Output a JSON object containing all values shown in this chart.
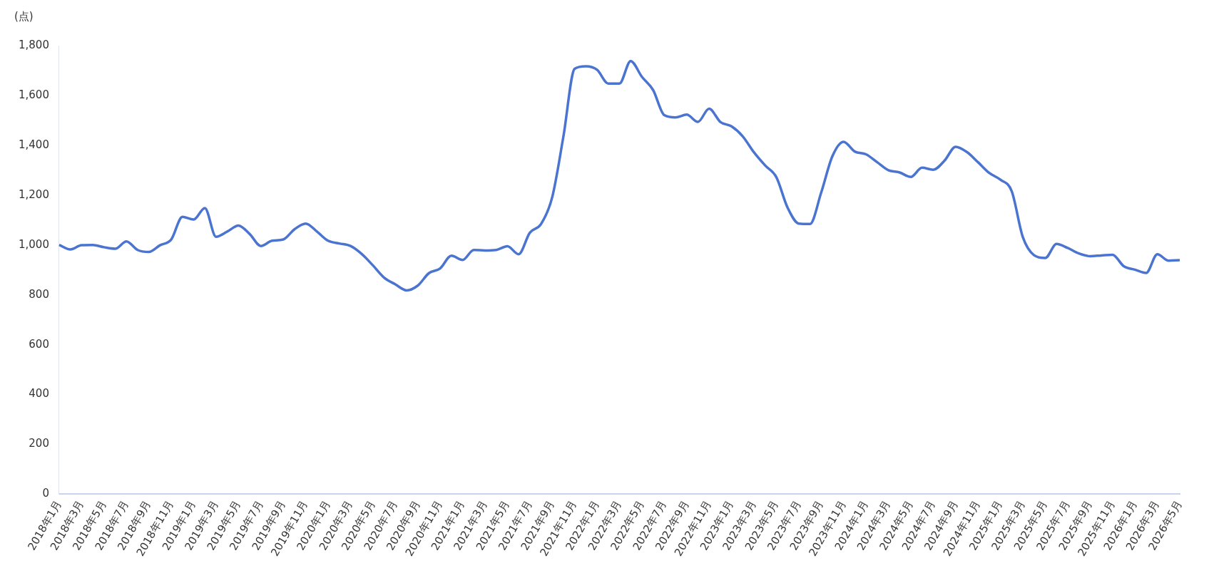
{
  "chart_data": {
    "type": "line",
    "ylabel": "(点)",
    "categories": [
      "2018年1月",
      null,
      "2018年3月",
      null,
      "2018年5月",
      null,
      "2018年7月",
      null,
      "2018年9月",
      null,
      "2018年11月",
      null,
      "2019年1月",
      null,
      "2019年3月",
      null,
      "2019年5月",
      null,
      "2019年7月",
      null,
      "2019年9月",
      null,
      "2019年11月",
      null,
      "2020年1月",
      null,
      "2020年3月",
      null,
      "2020年5月",
      null,
      "2020年7月",
      null,
      "2020年9月",
      null,
      "2020年11月",
      null,
      "2021年1月",
      null,
      "2021年3月",
      null,
      "2021年5月",
      null,
      "2021年7月",
      null,
      "2021年9月",
      null,
      "2021年11月",
      null,
      "2022年1月",
      null,
      "2022年3月",
      null,
      "2022年5月",
      null,
      "2022年7月",
      null,
      "2022年9月",
      null,
      "2022年11月",
      null,
      "2023年1月",
      null,
      "2023年3月",
      null,
      "2023年5月",
      null,
      "2023年7月",
      null,
      "2023年9月",
      null,
      "2023年11月",
      null,
      "2024年1月",
      null,
      "2024年3月",
      null,
      "2024年5月",
      null,
      "2024年7月",
      null,
      "2024年9月",
      null,
      "2024年11月",
      null,
      "2025年1月",
      null,
      "2025年3月",
      null,
      "2025年5月",
      null,
      "2025年7月",
      null,
      "2025年9月",
      null,
      "2025年11月",
      null,
      "2026年1月",
      null,
      "2026年3月",
      null,
      "2026年5月"
    ],
    "series": [
      {
        "color": "#4a74d0",
        "values": [
          1000,
          982,
          999,
          1000,
          991,
          985,
          1014,
          980,
          972,
          999,
          1022,
          1113,
          1102,
          1148,
          1033,
          1054,
          1078,
          1044,
          996,
          1017,
          1022,
          1063,
          1086,
          1054,
          1017,
          1006,
          996,
          964,
          918,
          869,
          842,
          818,
          837,
          887,
          906,
          957,
          940,
          980,
          978,
          980,
          995,
          963,
          1049,
          1084,
          1192,
          1436,
          1707,
          1717,
          1703,
          1648,
          1648,
          1738,
          1675,
          1622,
          1521,
          1512,
          1523,
          1494,
          1547,
          1494,
          1476,
          1436,
          1372,
          1319,
          1272,
          1150,
          1086,
          1084,
          1210,
          1356,
          1414,
          1375,
          1364,
          1332,
          1300,
          1291,
          1273,
          1310,
          1302,
          1338,
          1394,
          1373,
          1332,
          1289,
          1262,
          1216,
          1031,
          959,
          948,
          1004,
          988,
          966,
          955,
          958,
          961,
          915,
          901,
          888,
          963,
          937,
          939
        ]
      }
    ],
    "ylim": [
      0,
      1800
    ],
    "yticks": [
      0,
      200,
      400,
      600,
      800,
      {
        "value": 1000,
        "label": "1,000"
      },
      {
        "value": 1200,
        "label": "1,200"
      },
      {
        "value": 1400,
        "label": "1,400"
      },
      {
        "value": 1600,
        "label": "1,600"
      },
      {
        "value": 1800,
        "label": "1,800"
      }
    ],
    "grid": false,
    "legend": false,
    "marker": "none",
    "line_style": "solid"
  }
}
